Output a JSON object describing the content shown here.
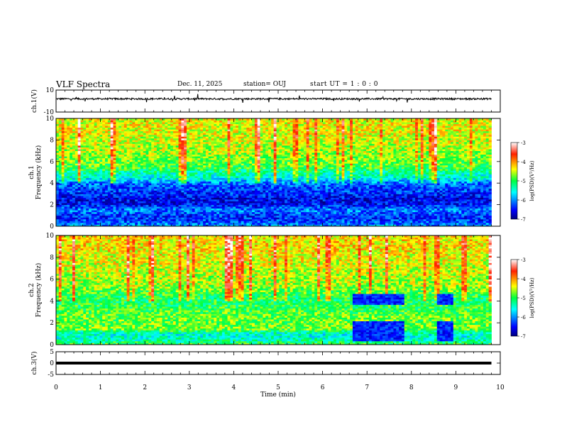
{
  "header": {
    "title": "VLF Spectra",
    "date": "Dec. 11, 2025",
    "station": "station= OUJ",
    "start_ut": "start  UT =   1 : 0  : 0"
  },
  "chart_data": [
    {
      "type": "line",
      "panel": "ch1-waveform",
      "ylabel": "ch.1(V)",
      "ylim": [
        -10,
        10
      ],
      "yticks": [
        "10",
        "-10"
      ],
      "xlim": [
        0,
        10
      ],
      "x": [
        0,
        1,
        2,
        3,
        4,
        5,
        6,
        7,
        8,
        9,
        9.8
      ],
      "values": [
        2,
        2,
        2,
        2,
        2,
        2,
        2,
        2,
        2,
        2,
        2
      ],
      "series_color": "#000000"
    },
    {
      "type": "heatmap",
      "panel": "ch1-spectrogram",
      "ylabel_line1": "ch.1",
      "ylabel_line2": "Frequency (kHz)",
      "ylim": [
        0,
        10
      ],
      "yticks": [
        "0",
        "2",
        "4",
        "6",
        "8",
        "10"
      ],
      "xlim": [
        0,
        10
      ],
      "data_xmax": 9.8,
      "colorbar": {
        "label": "log(PSD)(V²/Hz)",
        "range": [
          -7,
          -3
        ],
        "ticks": [
          "-3",
          "-4",
          "-5",
          "-6",
          "-7"
        ]
      },
      "freq_profile_khz": [
        0,
        0.5,
        1,
        1.5,
        2,
        2.5,
        3,
        3.5,
        4,
        4.5,
        5,
        5.5,
        6,
        6.5,
        7,
        8,
        9,
        10
      ],
      "freq_profile_logpsd": [
        -5.9,
        -6.3,
        -6.4,
        -6.0,
        -6.5,
        -6.6,
        -6.4,
        -6.3,
        -6.1,
        -5.5,
        -5.3,
        -4.9,
        -4.8,
        -4.7,
        -4.6,
        -4.5,
        -4.4,
        -4.4
      ]
    },
    {
      "type": "heatmap",
      "panel": "ch2-spectrogram",
      "ylabel_line1": "ch.2",
      "ylabel_line2": "Frequency (kHz)",
      "ylim": [
        0,
        10
      ],
      "yticks": [
        "0",
        "2",
        "4",
        "6",
        "8",
        "10"
      ],
      "xlim": [
        0,
        10
      ],
      "data_xmax": 9.8,
      "colorbar": {
        "label": "log(PSD)(V²/Hz)",
        "range": [
          -7,
          -3
        ],
        "ticks": [
          "-3",
          "-4",
          "-5",
          "-6",
          "-7"
        ]
      },
      "freq_profile_khz": [
        0,
        0.5,
        1,
        1.5,
        2,
        2.5,
        3,
        3.5,
        4,
        4.5,
        5,
        5.5,
        6,
        7,
        8,
        9,
        10
      ],
      "freq_profile_logpsd": [
        -4.9,
        -5.4,
        -5.5,
        -4.7,
        -4.8,
        -4.8,
        -4.9,
        -5.0,
        -5.1,
        -5.0,
        -4.8,
        -4.6,
        -4.6,
        -4.5,
        -4.4,
        -4.3,
        -4.3
      ],
      "dropout_intervals_min": [
        [
          6.65,
          7.85
        ],
        [
          8.55,
          8.95
        ]
      ],
      "dropout_freq_khz": [
        [
          0.4,
          2.1
        ],
        [
          3.6,
          4.6
        ]
      ]
    },
    {
      "type": "line",
      "panel": "ch3-waveform",
      "ylabel": "ch.3(V)",
      "ylim": [
        -5,
        5
      ],
      "yticks": [
        "5",
        "0",
        "-5"
      ],
      "xlim": [
        0,
        10
      ],
      "x": [
        0,
        9.8
      ],
      "values": [
        0,
        0
      ],
      "series_color": "#000000",
      "xlabel": "Time (min)",
      "xticks": [
        "0",
        "1",
        "2",
        "3",
        "4",
        "5",
        "6",
        "7",
        "8",
        "9",
        "10"
      ]
    }
  ]
}
